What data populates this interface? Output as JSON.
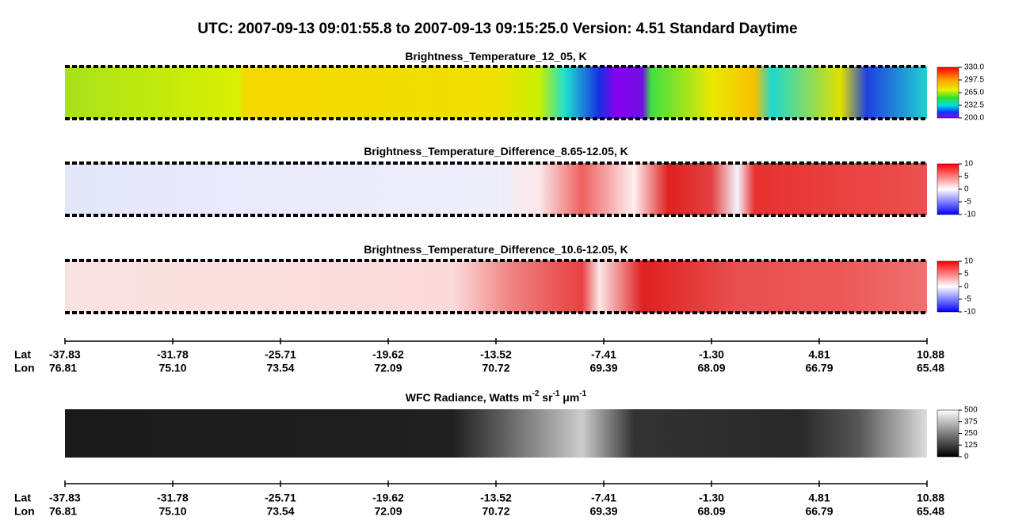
{
  "title": "UTC:  2007-09-13   09:01:55.8  to  2007-09-13   09:15:25.0    Version: 4.51  Standard Daytime",
  "panels": [
    {
      "title": [
        "Brightness_Temperature_12_05, K"
      ],
      "colorbar_ticks": [
        "330.0",
        "297.5",
        "265.0",
        "232.5",
        "200.0"
      ]
    },
    {
      "title": [
        "Brightness_Temperature_Difference_8.65-12.05, K"
      ],
      "colorbar_ticks": [
        "10",
        "5",
        "0",
        "-5",
        "-10"
      ]
    },
    {
      "title": [
        "Brightness_Temperature_Difference_10.6-12.05, K"
      ],
      "colorbar_ticks": [
        "10",
        "5",
        "0",
        "-5",
        "-10"
      ]
    },
    {
      "title": [
        "WFC Radiance, Watts m",
        "-2",
        " sr",
        "-1",
        " μm",
        "-1"
      ],
      "colorbar_ticks": [
        "500",
        "375",
        "250",
        "125",
        "0"
      ]
    }
  ],
  "axis": {
    "lat_label": "Lat",
    "lon_label": "Lon",
    "lat": [
      "-37.83",
      "-31.78",
      "-25.71",
      "-19.62",
      "-13.52",
      "-7.41",
      "-1.30",
      "4.81",
      "10.88"
    ],
    "lon": [
      "76.81",
      "75.10",
      "73.54",
      "72.09",
      "70.72",
      "69.39",
      "68.09",
      "66.79",
      "65.48"
    ]
  }
}
